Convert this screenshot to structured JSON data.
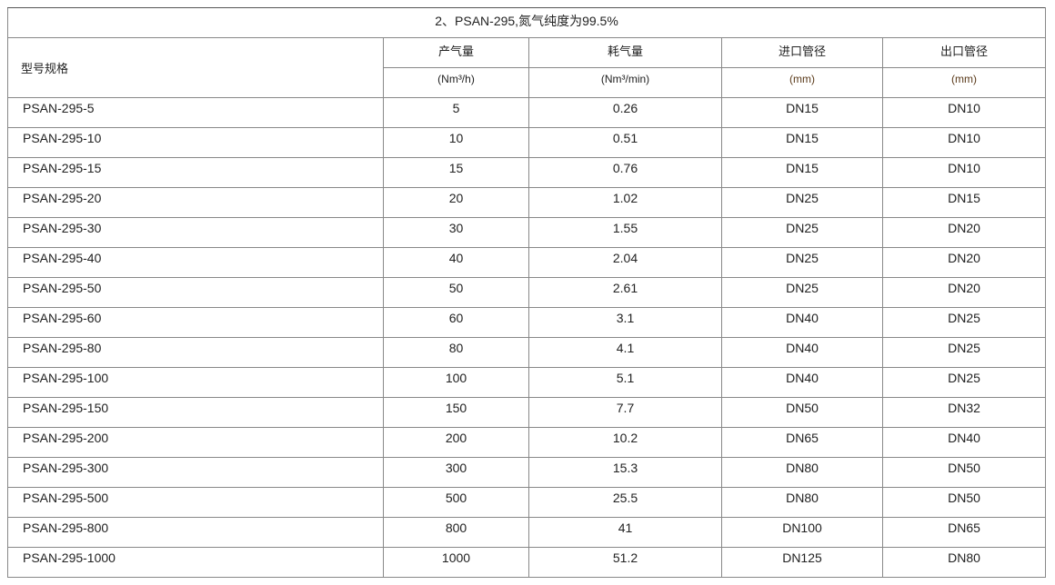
{
  "title": "2、PSAN-295,氮气纯度为99.5%",
  "headers": {
    "model": "型号规格",
    "output": "产气量",
    "output_unit": "(Nm³/h)",
    "consumption": "耗气量",
    "consumption_unit": "(Nm³/min)",
    "inlet": "进口管径",
    "inlet_unit": "(mm)",
    "outlet": "出口管径",
    "outlet_unit": "(mm)"
  },
  "rows": [
    [
      "PSAN-295-5",
      "5",
      "0.26",
      "DN15",
      "DN10"
    ],
    [
      "PSAN-295-10",
      "10",
      "0.51",
      "DN15",
      "DN10"
    ],
    [
      "PSAN-295-15",
      "15",
      "0.76",
      "DN15",
      "DN10"
    ],
    [
      "PSAN-295-20",
      "20",
      "1.02",
      "DN25",
      "DN15"
    ],
    [
      "PSAN-295-30",
      "30",
      "1.55",
      "DN25",
      "DN20"
    ],
    [
      "PSAN-295-40",
      "40",
      "2.04",
      "DN25",
      "DN20"
    ],
    [
      "PSAN-295-50",
      "50",
      "2.61",
      "DN25",
      "DN20"
    ],
    [
      "PSAN-295-60",
      "60",
      "3.1",
      "DN40",
      "DN25"
    ],
    [
      "PSAN-295-80",
      "80",
      "4.1",
      "DN40",
      "DN25"
    ],
    [
      "PSAN-295-100",
      "100",
      "5.1",
      "DN40",
      "DN25"
    ],
    [
      "PSAN-295-150",
      "150",
      "7.7",
      "DN50",
      "DN32"
    ],
    [
      "PSAN-295-200",
      "200",
      "10.2",
      "DN65",
      "DN40"
    ],
    [
      "PSAN-295-300",
      "300",
      "15.3",
      "DN80",
      "DN50"
    ],
    [
      "PSAN-295-500",
      "500",
      "25.5",
      "DN80",
      "DN50"
    ],
    [
      "PSAN-295-800",
      "800",
      "41",
      "DN100",
      "DN65"
    ],
    [
      "PSAN-295-1000",
      "1000",
      "51.2",
      "DN125",
      "DN80"
    ]
  ]
}
